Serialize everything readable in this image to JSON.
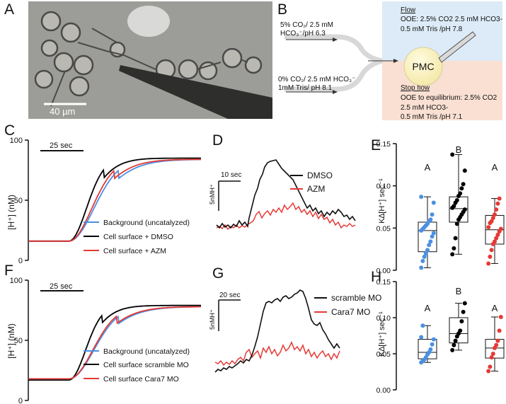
{
  "figure": {
    "panels": {
      "A": "A",
      "B": "B",
      "C": "C",
      "D": "D",
      "E": "E",
      "F": "F",
      "G": "G",
      "H": "H"
    },
    "A": {
      "scale_bar": "40 µm",
      "colors": {
        "bg": "#9a9a98",
        "cell_fill": "#b9b8b2",
        "cell_edge": "#4a4a48",
        "dark": "#2e2e2d"
      }
    },
    "B": {
      "inlet_top": [
        "5% CO₂/ 2.5 mM",
        "HCO₃⁻/pH 6.3"
      ],
      "inlet_bottom": [
        "0% CO₂/ 2.5 mM HCO₃⁻",
        "1mM Tris/ pH 8.1"
      ],
      "flow_title": "Flow",
      "flow_lines": [
        "OOE: 2.5% CO2 2.5 mM HCO3-",
        "0.5 mM Tris /pH 7.8"
      ],
      "stop_title": "Stop flow",
      "stop_lines": [
        "OOE to equilibrium: 2.5% CO2",
        "2.5 mM HCO3-",
        "0.5 mM Tris /pH 7.1"
      ],
      "cell_label": "PMC",
      "colors": {
        "flow_bg": "#dcebf7",
        "stop_bg": "#f9e0d2",
        "cell": "#fdf5c4"
      }
    },
    "C": {
      "scale_label": "25 sec",
      "ylabel": "[H⁺] (nM)",
      "legend": [
        "Background (uncatalyzed)",
        "Cell surface + DMSO",
        "Cell surface + AZM"
      ]
    },
    "D": {
      "time_bar": "10 sec",
      "conc_bar": "5nMH⁺",
      "legend": [
        "DMSO",
        "AZM"
      ]
    },
    "E": {
      "letters": [
        "A",
        "B",
        "A"
      ],
      "ylabel": "K∆[H⁺] sec⁻¹"
    },
    "F": {
      "scale_label": "25 sec",
      "ylabel": "[H⁺] (nM)",
      "legend": [
        "Background (uncatalyzed)",
        "Cell surface scramble MO",
        "Cell surface Cara7 MO"
      ]
    },
    "G": {
      "time_bar": "20 sec",
      "conc_bar": "5nMH⁺",
      "legend": [
        "scramble MO",
        "Cara7 MO"
      ]
    },
    "H": {
      "letters": [
        "A",
        "B",
        "A"
      ],
      "ylabel": "K∆[H⁺] sec⁻¹"
    }
  },
  "chart_data": [
    {
      "id": "C",
      "type": "line",
      "ylabel": "[H⁺] (nM)",
      "ylim": [
        0,
        100
      ],
      "yticks": [
        "0",
        "50",
        "100"
      ],
      "series": [
        {
          "name": "Background (uncatalyzed)",
          "color": "#4a90e2",
          "baseline": 16,
          "onset": 0.235,
          "plateau": 84,
          "rise": 0.24
        },
        {
          "name": "Cell surface + DMSO",
          "color": "#000000",
          "baseline": 16,
          "onset": 0.235,
          "plateau": 85,
          "rise": 0.17
        },
        {
          "name": "Cell surface + AZM",
          "color": "#e53935",
          "baseline": 16,
          "onset": 0.235,
          "plateau": 84,
          "rise": 0.22
        }
      ]
    },
    {
      "id": "D",
      "type": "line",
      "series": [
        {
          "name": "DMSO",
          "color": "#000000"
        },
        {
          "name": "AZM",
          "color": "#e53935"
        }
      ]
    },
    {
      "id": "E",
      "type": "scatter",
      "ylabel": "K∆[H⁺] sec⁻¹",
      "ylim": [
        0,
        0.15
      ],
      "yticks": [
        "0.00",
        "0.05",
        "0.10",
        "0.15"
      ],
      "groups": [
        {
          "color": "#4a90e2",
          "min": 0.003,
          "q1": 0.022,
          "median": 0.047,
          "q3": 0.057,
          "max": 0.087,
          "points": [
            0.003,
            0.011,
            0.016,
            0.02,
            0.024,
            0.03,
            0.034,
            0.04,
            0.044,
            0.047,
            0.049,
            0.051,
            0.053,
            0.055,
            0.058,
            0.06,
            0.066,
            0.08,
            0.087
          ]
        },
        {
          "color": "#000000",
          "min": 0.019,
          "q1": 0.057,
          "median": 0.073,
          "q3": 0.087,
          "max": 0.137,
          "points": [
            0.019,
            0.026,
            0.038,
            0.055,
            0.06,
            0.063,
            0.066,
            0.069,
            0.072,
            0.074,
            0.076,
            0.08,
            0.083,
            0.088,
            0.091,
            0.097,
            0.102,
            0.118,
            0.137
          ]
        },
        {
          "color": "#e53935",
          "min": 0.008,
          "q1": 0.031,
          "median": 0.048,
          "q3": 0.065,
          "max": 0.085,
          "points": [
            0.008,
            0.016,
            0.024,
            0.031,
            0.034,
            0.038,
            0.042,
            0.046,
            0.049,
            0.051,
            0.056,
            0.058,
            0.062,
            0.066,
            0.072,
            0.079,
            0.085
          ]
        }
      ]
    },
    {
      "id": "F",
      "type": "line",
      "ylabel": "[H⁺] (nM)",
      "ylim": [
        0,
        100
      ],
      "yticks": [
        "0",
        "50",
        "100"
      ],
      "series": [
        {
          "name": "Background (uncatalyzed)",
          "color": "#4a90e2",
          "baseline": 18,
          "onset": 0.235,
          "plateau": 78,
          "rise": 0.24
        },
        {
          "name": "Cell surface scramble MO",
          "color": "#000000",
          "baseline": 17,
          "onset": 0.235,
          "plateau": 79,
          "rise": 0.16
        },
        {
          "name": "Cell surface Cara7 MO",
          "color": "#e53935",
          "baseline": 18,
          "onset": 0.235,
          "plateau": 78,
          "rise": 0.23
        }
      ]
    },
    {
      "id": "G",
      "type": "line",
      "series": [
        {
          "name": "scramble MO",
          "color": "#000000"
        },
        {
          "name": "Cara7 MO",
          "color": "#e53935"
        }
      ]
    },
    {
      "id": "H",
      "type": "scatter",
      "ylabel": "K∆[H⁺] sec⁻¹",
      "ylim": [
        0,
        0.15
      ],
      "yticks": [
        "0.00",
        "0.05",
        "0.10",
        "0.15"
      ],
      "groups": [
        {
          "color": "#4a90e2",
          "min": 0.038,
          "q1": 0.043,
          "median": 0.052,
          "q3": 0.07,
          "max": 0.089,
          "points": [
            0.038,
            0.04,
            0.042,
            0.045,
            0.049,
            0.052,
            0.056,
            0.063,
            0.07,
            0.073,
            0.089
          ]
        },
        {
          "color": "#000000",
          "min": 0.055,
          "q1": 0.065,
          "median": 0.078,
          "q3": 0.1,
          "max": 0.12,
          "points": [
            0.055,
            0.062,
            0.068,
            0.074,
            0.078,
            0.082,
            0.095,
            0.108,
            0.12
          ]
        },
        {
          "color": "#e53935",
          "min": 0.026,
          "q1": 0.044,
          "median": 0.058,
          "q3": 0.07,
          "max": 0.101,
          "points": [
            0.026,
            0.032,
            0.045,
            0.05,
            0.058,
            0.062,
            0.068,
            0.082,
            0.101
          ]
        }
      ]
    }
  ]
}
